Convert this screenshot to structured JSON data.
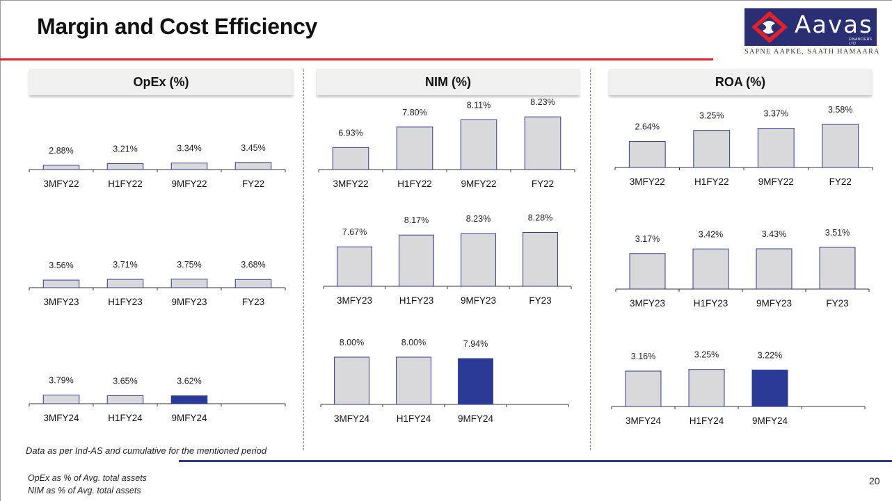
{
  "slide": {
    "title": "Margin and Cost Efficiency",
    "brand": {
      "name": "Aavas",
      "sub": "FINANCIERS LTD",
      "tagline": "SAPNE AAPKE, SAATH HAMAARA",
      "logo_bg": "#2a2f73",
      "logo_accent": "#e3202b"
    },
    "footnote": "Data as per Ind-AS and cumulative for the mentioned period",
    "definitions": [
      "OpEx as % of Avg. total assets",
      "NIM as % of Avg. total assets"
    ],
    "page_number": "20",
    "colors": {
      "bar_fill": "#d9d9dc",
      "bar_highlight": "#2b3a97",
      "bar_border": "#2e3a8c",
      "title_rule": "#e3202b",
      "footer_rule": "#2e3a8c"
    }
  },
  "chart_data": [
    {
      "panel": "OpEx (%)",
      "type": "bar",
      "highlight_index": -1,
      "categories": [
        "3MFY22",
        "H1FY22",
        "9MFY22",
        "FY22"
      ],
      "values": [
        2.88,
        3.21,
        3.34,
        3.45
      ],
      "labels": [
        "2.88%",
        "3.21%",
        "3.34%",
        "3.45%"
      ]
    },
    {
      "panel": "OpEx (%)",
      "type": "bar",
      "highlight_index": -1,
      "categories": [
        "3MFY23",
        "H1FY23",
        "9MFY23",
        "FY23"
      ],
      "values": [
        3.56,
        3.71,
        3.75,
        3.68
      ],
      "labels": [
        "3.56%",
        "3.71%",
        "3.75%",
        "3.68%"
      ]
    },
    {
      "panel": "OpEx (%)",
      "type": "bar",
      "highlight_index": 2,
      "categories": [
        "3MFY24",
        "H1FY24",
        "9MFY24",
        ""
      ],
      "values": [
        3.79,
        3.65,
        3.62,
        null
      ],
      "labels": [
        "3.79%",
        "3.65%",
        "3.62%",
        ""
      ]
    },
    {
      "panel": "NIM (%)",
      "type": "bar",
      "highlight_index": -1,
      "categories": [
        "3MFY22",
        "H1FY22",
        "9MFY22",
        "FY22"
      ],
      "values": [
        6.93,
        7.8,
        8.11,
        8.23
      ],
      "labels": [
        "6.93%",
        "7.80%",
        "8.11%",
        "8.23%"
      ]
    },
    {
      "panel": "NIM (%)",
      "type": "bar",
      "highlight_index": -1,
      "categories": [
        "3MFY23",
        "H1FY23",
        "9MFY23",
        "FY23"
      ],
      "values": [
        7.67,
        8.17,
        8.23,
        8.28
      ],
      "labels": [
        "7.67%",
        "8.17%",
        "8.23%",
        "8.28%"
      ]
    },
    {
      "panel": "NIM (%)",
      "type": "bar",
      "highlight_index": 2,
      "categories": [
        "3MFY24",
        "H1FY24",
        "9MFY24",
        ""
      ],
      "values": [
        8.0,
        8.0,
        7.94,
        null
      ],
      "labels": [
        "8.00%",
        "8.00%",
        "7.94%",
        ""
      ]
    },
    {
      "panel": "ROA (%)",
      "type": "bar",
      "highlight_index": -1,
      "categories": [
        "3MFY22",
        "H1FY22",
        "9MFY22",
        "FY22"
      ],
      "values": [
        2.64,
        3.25,
        3.37,
        3.58
      ],
      "labels": [
        "2.64%",
        "3.25%",
        "3.37%",
        "3.58%"
      ]
    },
    {
      "panel": "ROA (%)",
      "type": "bar",
      "highlight_index": -1,
      "categories": [
        "3MFY23",
        "H1FY23",
        "9MFY23",
        "FY23"
      ],
      "values": [
        3.17,
        3.42,
        3.43,
        3.51
      ],
      "labels": [
        "3.17%",
        "3.42%",
        "3.43%",
        "3.51%"
      ]
    },
    {
      "panel": "ROA (%)",
      "type": "bar",
      "highlight_index": 2,
      "categories": [
        "3MFY24",
        "H1FY24",
        "9MFY24",
        ""
      ],
      "values": [
        3.16,
        3.25,
        3.22,
        null
      ],
      "labels": [
        "3.16%",
        "3.25%",
        "3.22%",
        ""
      ]
    }
  ]
}
